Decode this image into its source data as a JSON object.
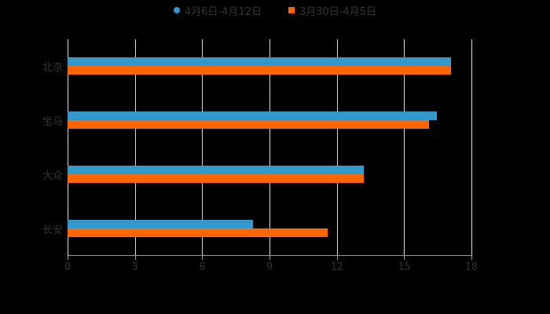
{
  "chart_data": {
    "type": "bar",
    "orientation": "horizontal",
    "title": "",
    "xlabel": "",
    "ylabel": "",
    "categories": [
      "北京",
      "宝马",
      "大众",
      "长安"
    ],
    "series": [
      {
        "name": "4月6日-4月12日",
        "color": "#3399cc",
        "values": [
          17.1,
          16.45,
          13.2,
          8.25
        ]
      },
      {
        "name": "3月30日-4月5日",
        "color": "#ff6600",
        "values": [
          17.1,
          16.1,
          13.2,
          11.6
        ]
      }
    ],
    "xlim": [
      0,
      18
    ],
    "xticks": [
      "0",
      "3",
      "6",
      "9",
      "12",
      "15",
      "18"
    ],
    "grid": "vertical",
    "legend_position": "top"
  },
  "legend": {
    "items": [
      {
        "label": "4月6日-4月12日",
        "color": "#3399cc",
        "shape": "circle"
      },
      {
        "label": "3月30日-4月5日",
        "color": "#ff6600",
        "shape": "square"
      }
    ]
  }
}
